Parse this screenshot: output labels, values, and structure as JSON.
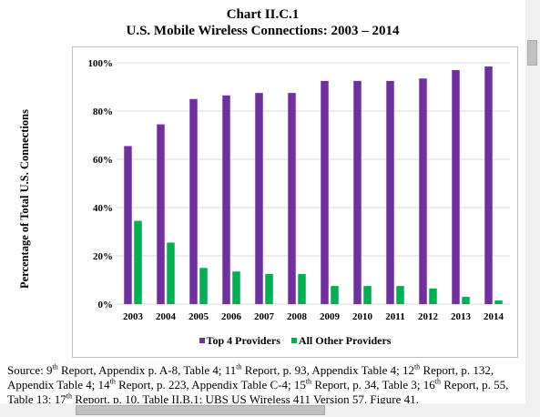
{
  "title_line1": "Chart II.C.1",
  "title_line2": "U.S. Mobile Wireless Connections:  2003 – 2014",
  "chart_data": {
    "type": "bar",
    "categories": [
      "2003",
      "2004",
      "2005",
      "2006",
      "2007",
      "2008",
      "2009",
      "2010",
      "2011",
      "2012",
      "2013",
      "2014"
    ],
    "series": [
      {
        "name": "Top 4 Providers",
        "color": "#7030a0",
        "values": [
          65.5,
          74.5,
          85,
          86.5,
          87.5,
          87.5,
          92.5,
          92.5,
          92.5,
          93.5,
          97,
          98.5
        ]
      },
      {
        "name": "All Other Providers",
        "color": "#00b050",
        "values": [
          34.5,
          25.5,
          15,
          13.5,
          12.5,
          12.5,
          7.5,
          7.5,
          7.5,
          6.5,
          3,
          1.5
        ]
      }
    ],
    "yticks": [
      "0%",
      "20%",
      "40%",
      "60%",
      "80%",
      "100%"
    ],
    "ylim": [
      0,
      100
    ],
    "ylabel": "Percentage of Total U.S. Connections",
    "xlabel": "",
    "grid": true,
    "legend": "bottom"
  },
  "source": {
    "prefix": "Source:  ",
    "parts": [
      {
        "t": "9"
      },
      {
        "s": "th"
      },
      {
        "t": " Report, Appendix p. A-8, Table 4; 11"
      },
      {
        "s": "th"
      },
      {
        "t": " Report, p. 93, Appendix Table 4; 12"
      },
      {
        "s": "th"
      },
      {
        "t": " Report, p. 132, Appendix Table 4; 14"
      },
      {
        "s": "th"
      },
      {
        "t": " Report, p. 223, Appendix Table C-4; 15"
      },
      {
        "s": "th"
      },
      {
        "t": " Report, p. 34, Table 3; 16"
      },
      {
        "s": "th"
      },
      {
        "t": " Report, p. 55, Table 13; 17"
      },
      {
        "s": "th"
      },
      {
        "t": " Report, p. 10, Table II.B.1; UBS US Wireless 411 Version 57, Figure 41."
      }
    ]
  }
}
